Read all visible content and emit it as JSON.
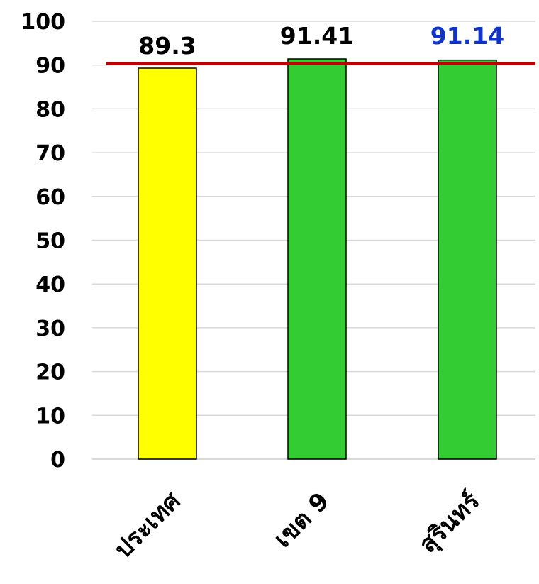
{
  "chart_data": {
    "type": "bar",
    "categories": [
      "ประเทศ",
      "เขต 9",
      "สุรินทร์"
    ],
    "values": [
      89.3,
      91.41,
      91.14
    ],
    "data_labels": [
      "89.3",
      "91.41",
      "91.14"
    ],
    "bar_colors": [
      "#FFFF00",
      "#33CC33",
      "#33CC33"
    ],
    "label_colors": [
      "#000000",
      "#000000",
      "#1033C8"
    ],
    "ylim": [
      0,
      100
    ],
    "yticks": [
      0,
      10,
      20,
      30,
      40,
      50,
      60,
      70,
      80,
      90,
      100
    ],
    "target_line": {
      "value": 90,
      "color": "#C00000"
    },
    "grid": true
  }
}
